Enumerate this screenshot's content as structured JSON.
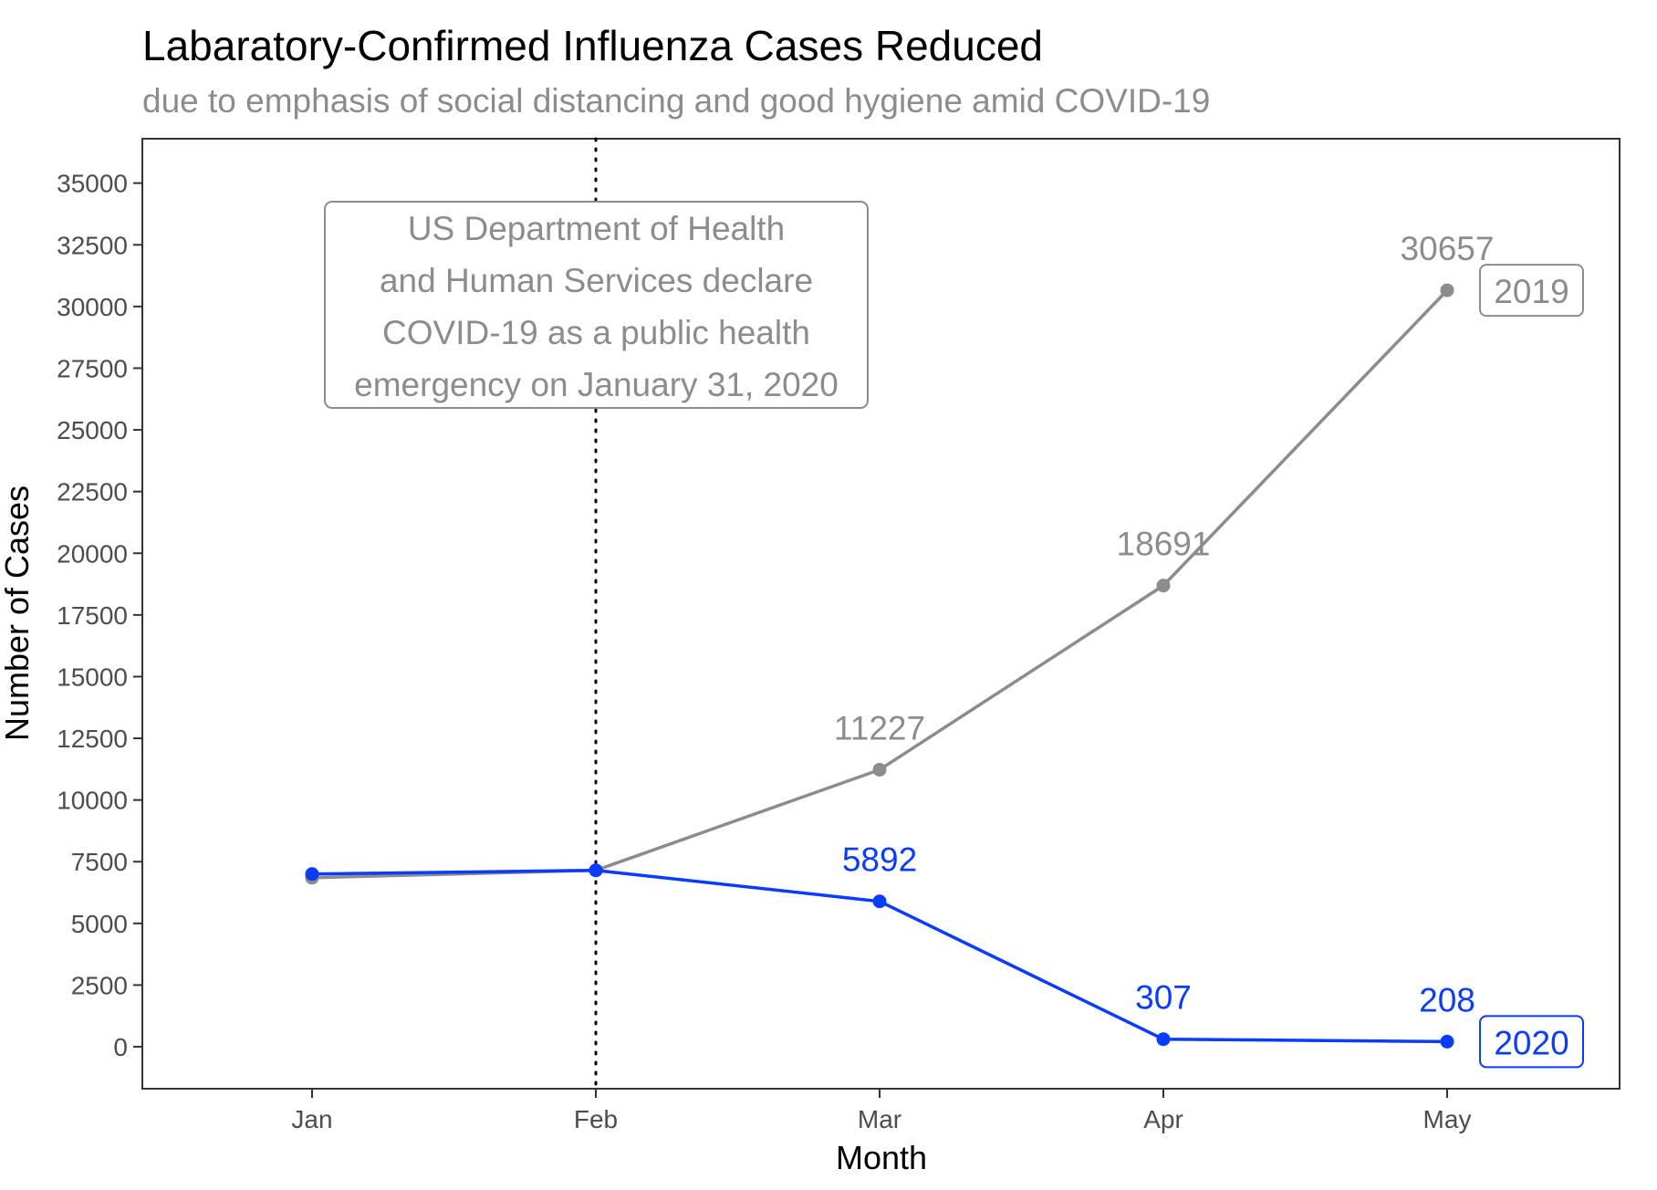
{
  "chart_data": {
    "type": "line",
    "title": "Labaratory-Confirmed Influenza Cases Reduced",
    "subtitle": "due to emphasis of social distancing and good hygiene amid COVID-19",
    "xlabel": "Month",
    "ylabel": "Number of Cases",
    "categories": [
      "Jan",
      "Feb",
      "Mar",
      "Apr",
      "May"
    ],
    "yticks": [
      0,
      2500,
      5000,
      7500,
      10000,
      12500,
      15000,
      17500,
      20000,
      22500,
      25000,
      27500,
      30000,
      32500,
      35000
    ],
    "ylim": [
      -1700,
      36800
    ],
    "grid": false,
    "series": [
      {
        "name": "2019",
        "color": "#8c8c8c",
        "values": [
          6850,
          7150,
          11227,
          18691,
          30657
        ],
        "labels": [
          "",
          "",
          "11227",
          "18691",
          "30657"
        ]
      },
      {
        "name": "2020",
        "color": "#0a3cff",
        "values": [
          7000,
          7150,
          5892,
          307,
          208
        ],
        "labels": [
          "",
          "",
          "5892",
          "307",
          "208"
        ]
      }
    ],
    "reference_line": {
      "x": "Feb",
      "style": "dotted",
      "color": "#000000"
    },
    "annotation": {
      "lines": [
        "US Department of Health",
        "and Human Services declare",
        "COVID-19 as a public health",
        "emergency on January 31, 2020"
      ],
      "color": "#8c8c8c"
    }
  }
}
